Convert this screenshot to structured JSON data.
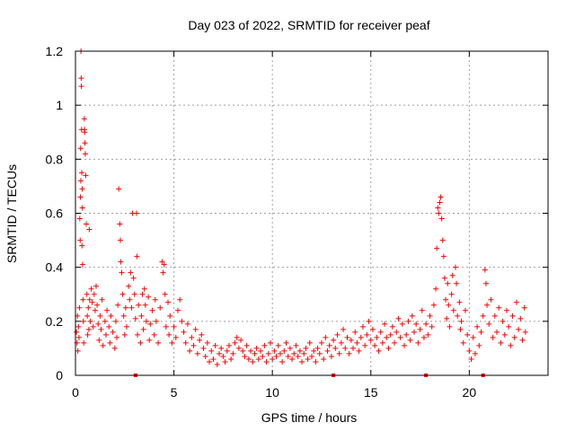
{
  "chart_data": {
    "type": "scatter",
    "title": "Day 023 of 2022, SRMTID for receiver peaf",
    "xlabel": "GPS time / hours",
    "ylabel": "SRMTID / TECUs",
    "xlim": [
      0,
      24
    ],
    "ylim": [
      0,
      1.2
    ],
    "x_ticks": [
      0,
      5,
      10,
      15,
      20
    ],
    "x_tick_labels": [
      "0",
      "5",
      "10",
      "15",
      "20"
    ],
    "y_ticks": [
      0,
      0.2,
      0.4,
      0.6,
      0.8,
      1.0,
      1.2
    ],
    "y_tick_labels": [
      "0",
      "0.2",
      "0.4",
      "0.6",
      "0.8",
      "1",
      "1.2"
    ],
    "grid": true,
    "marker": "plus",
    "color": "#ff0000",
    "series": [
      {
        "name": "SRMTID",
        "points": [
          [
            0.05,
            0.16
          ],
          [
            0.08,
            0.12
          ],
          [
            0.1,
            0.22
          ],
          [
            0.12,
            0.09
          ],
          [
            0.15,
            0.18
          ],
          [
            0.18,
            0.14
          ],
          [
            0.2,
            0.25
          ],
          [
            0.22,
            0.58
          ],
          [
            0.24,
            0.5
          ],
          [
            0.25,
            0.66
          ],
          [
            0.26,
            0.84
          ],
          [
            0.27,
            0.72
          ],
          [
            0.28,
            1.2
          ],
          [
            0.29,
            1.1
          ],
          [
            0.3,
            1.07
          ],
          [
            0.31,
            0.91
          ],
          [
            0.32,
            0.75
          ],
          [
            0.33,
            0.48
          ],
          [
            0.34,
            0.69
          ],
          [
            0.35,
            0.62
          ],
          [
            0.36,
            0.41
          ],
          [
            0.38,
            0.28
          ],
          [
            0.4,
            0.2
          ],
          [
            0.42,
            0.12
          ],
          [
            0.45,
            0.95
          ],
          [
            0.46,
            0.91
          ],
          [
            0.47,
            0.9
          ],
          [
            0.48,
            0.86
          ],
          [
            0.5,
            0.82
          ],
          [
            0.52,
            0.74
          ],
          [
            0.55,
            0.56
          ],
          [
            0.58,
            0.3
          ],
          [
            0.6,
            0.22
          ],
          [
            0.62,
            0.15
          ],
          [
            0.65,
            0.25
          ],
          [
            0.68,
            0.17
          ],
          [
            0.7,
            0.54
          ],
          [
            0.72,
            0.28
          ],
          [
            0.75,
            0.2
          ],
          [
            0.8,
            0.32
          ],
          [
            0.85,
            0.27
          ],
          [
            0.9,
            0.18
          ],
          [
            0.95,
            0.3
          ],
          [
            1.0,
            0.24
          ],
          [
            1.05,
            0.33
          ],
          [
            1.1,
            0.26
          ],
          [
            1.15,
            0.19
          ],
          [
            1.2,
            0.13
          ],
          [
            1.25,
            0.22
          ],
          [
            1.3,
            0.17
          ],
          [
            1.35,
            0.28
          ],
          [
            1.4,
            0.11
          ],
          [
            1.5,
            0.2
          ],
          [
            1.55,
            0.15
          ],
          [
            1.6,
            0.24
          ],
          [
            1.7,
            0.18
          ],
          [
            1.75,
            0.12
          ],
          [
            1.8,
            0.22
          ],
          [
            1.9,
            0.16
          ],
          [
            2.0,
            0.1
          ],
          [
            2.05,
            0.2
          ],
          [
            2.1,
            0.14
          ],
          [
            2.15,
            0.26
          ],
          [
            2.2,
            0.69
          ],
          [
            2.25,
            0.56
          ],
          [
            2.28,
            0.5
          ],
          [
            2.3,
            0.42
          ],
          [
            2.35,
            0.38
          ],
          [
            2.4,
            0.3
          ],
          [
            2.45,
            0.22
          ],
          [
            2.5,
            0.15
          ],
          [
            2.55,
            0.25
          ],
          [
            2.6,
            0.18
          ],
          [
            2.7,
            0.33
          ],
          [
            2.75,
            0.28
          ],
          [
            2.8,
            0.38
          ],
          [
            2.85,
            0.25
          ],
          [
            2.9,
            0.6
          ],
          [
            2.95,
            0.36
          ],
          [
            3.0,
            0.3
          ],
          [
            3.05,
            0.21
          ],
          [
            3.1,
            0.6
          ],
          [
            3.12,
            0.44
          ],
          [
            3.15,
            0.15
          ],
          [
            3.2,
            0.26
          ],
          [
            3.3,
            0.12
          ],
          [
            3.35,
            0.22
          ],
          [
            3.4,
            0.3
          ],
          [
            3.45,
            0.17
          ],
          [
            3.5,
            0.32
          ],
          [
            3.55,
            0.26
          ],
          [
            3.6,
            0.2
          ],
          [
            3.7,
            0.29
          ],
          [
            3.75,
            0.13
          ],
          [
            3.8,
            0.19
          ],
          [
            3.9,
            0.24
          ],
          [
            4.0,
            0.15
          ],
          [
            4.05,
            0.28
          ],
          [
            4.1,
            0.2
          ],
          [
            4.2,
            0.12
          ],
          [
            4.3,
            0.25
          ],
          [
            4.4,
            0.42
          ],
          [
            4.45,
            0.38
          ],
          [
            4.5,
            0.41
          ],
          [
            4.55,
            0.3
          ],
          [
            4.6,
            0.18
          ],
          [
            4.7,
            0.27
          ],
          [
            4.75,
            0.15
          ],
          [
            4.8,
            0.22
          ],
          [
            4.9,
            0.12
          ],
          [
            5.0,
            0.18
          ],
          [
            5.1,
            0.14
          ],
          [
            5.2,
            0.24
          ],
          [
            5.3,
            0.28
          ],
          [
            5.4,
            0.2
          ],
          [
            5.5,
            0.16
          ],
          [
            5.6,
            0.12
          ],
          [
            5.7,
            0.19
          ],
          [
            5.8,
            0.09
          ],
          [
            5.9,
            0.14
          ],
          [
            6.0,
            0.11
          ],
          [
            6.1,
            0.17
          ],
          [
            6.2,
            0.08
          ],
          [
            6.3,
            0.13
          ],
          [
            6.4,
            0.15
          ],
          [
            6.5,
            0.1
          ],
          [
            6.6,
            0.07
          ],
          [
            6.7,
            0.12
          ],
          [
            6.8,
            0.05
          ],
          [
            6.9,
            0.09
          ],
          [
            7.0,
            0.06
          ],
          [
            7.1,
            0.11
          ],
          [
            7.2,
            0.04
          ],
          [
            7.3,
            0.08
          ],
          [
            7.4,
            0.1
          ],
          [
            7.5,
            0.07
          ],
          [
            7.6,
            0.05
          ],
          [
            7.7,
            0.09
          ],
          [
            7.8,
            0.11
          ],
          [
            7.9,
            0.06
          ],
          [
            8.0,
            0.08
          ],
          [
            8.1,
            0.12
          ],
          [
            8.2,
            0.14
          ],
          [
            8.3,
            0.1
          ],
          [
            8.4,
            0.13
          ],
          [
            8.5,
            0.09
          ],
          [
            8.6,
            0.07
          ],
          [
            8.7,
            0.11
          ],
          [
            8.8,
            0.06
          ],
          [
            8.9,
            0.09
          ],
          [
            9.0,
            0.05
          ],
          [
            9.1,
            0.08
          ],
          [
            9.2,
            0.1
          ],
          [
            9.3,
            0.06
          ],
          [
            9.4,
            0.09
          ],
          [
            9.5,
            0.07
          ],
          [
            9.6,
            0.11
          ],
          [
            9.7,
            0.05
          ],
          [
            9.8,
            0.08
          ],
          [
            9.9,
            0.12
          ],
          [
            10.0,
            0.06
          ],
          [
            10.1,
            0.09
          ],
          [
            10.2,
            0.07
          ],
          [
            10.3,
            0.11
          ],
          [
            10.4,
            0.08
          ],
          [
            10.5,
            0.05
          ],
          [
            10.6,
            0.09
          ],
          [
            10.7,
            0.12
          ],
          [
            10.8,
            0.07
          ],
          [
            10.9,
            0.1
          ],
          [
            11.0,
            0.06
          ],
          [
            11.1,
            0.08
          ],
          [
            11.2,
            0.11
          ],
          [
            11.3,
            0.07
          ],
          [
            11.4,
            0.09
          ],
          [
            11.5,
            0.05
          ],
          [
            11.6,
            0.08
          ],
          [
            11.7,
            0.1
          ],
          [
            11.8,
            0.06
          ],
          [
            11.9,
            0.12
          ],
          [
            12.0,
            0.07
          ],
          [
            12.1,
            0.09
          ],
          [
            12.2,
            0.05
          ],
          [
            12.3,
            0.1
          ],
          [
            12.4,
            0.08
          ],
          [
            12.5,
            0.12
          ],
          [
            12.6,
            0.06
          ],
          [
            12.7,
            0.14
          ],
          [
            12.8,
            0.09
          ],
          [
            12.9,
            0.11
          ],
          [
            13.0,
            0.07
          ],
          [
            13.1,
            0.13
          ],
          [
            13.2,
            0.1
          ],
          [
            13.3,
            0.15
          ],
          [
            13.4,
            0.08
          ],
          [
            13.5,
            0.12
          ],
          [
            13.6,
            0.17
          ],
          [
            13.7,
            0.1
          ],
          [
            13.8,
            0.14
          ],
          [
            13.9,
            0.08
          ],
          [
            14.0,
            0.13
          ],
          [
            14.1,
            0.1
          ],
          [
            14.2,
            0.16
          ],
          [
            14.3,
            0.12
          ],
          [
            14.4,
            0.09
          ],
          [
            14.5,
            0.14
          ],
          [
            14.6,
            0.18
          ],
          [
            14.7,
            0.11
          ],
          [
            14.8,
            0.15
          ],
          [
            14.9,
            0.2
          ],
          [
            15.0,
            0.13
          ],
          [
            15.1,
            0.17
          ],
          [
            15.2,
            0.11
          ],
          [
            15.3,
            0.14
          ],
          [
            15.4,
            0.09
          ],
          [
            15.5,
            0.16
          ],
          [
            15.6,
            0.12
          ],
          [
            15.7,
            0.19
          ],
          [
            15.8,
            0.14
          ],
          [
            15.9,
            0.1
          ],
          [
            16.0,
            0.15
          ],
          [
            16.1,
            0.18
          ],
          [
            16.2,
            0.12
          ],
          [
            16.3,
            0.16
          ],
          [
            16.4,
            0.21
          ],
          [
            16.5,
            0.14
          ],
          [
            16.6,
            0.19
          ],
          [
            16.7,
            0.11
          ],
          [
            16.8,
            0.15
          ],
          [
            16.9,
            0.2
          ],
          [
            17.0,
            0.13
          ],
          [
            17.1,
            0.22
          ],
          [
            17.2,
            0.16
          ],
          [
            17.3,
            0.19
          ],
          [
            17.4,
            0.12
          ],
          [
            17.5,
            0.17
          ],
          [
            17.6,
            0.24
          ],
          [
            17.7,
            0.14
          ],
          [
            17.8,
            0.19
          ],
          [
            17.9,
            0.15
          ],
          [
            18.0,
            0.22
          ],
          [
            18.1,
            0.18
          ],
          [
            18.2,
            0.26
          ],
          [
            18.3,
            0.32
          ],
          [
            18.35,
            0.47
          ],
          [
            18.4,
            0.62
          ],
          [
            18.45,
            0.6
          ],
          [
            18.5,
            0.64
          ],
          [
            18.55,
            0.66
          ],
          [
            18.6,
            0.58
          ],
          [
            18.65,
            0.5
          ],
          [
            18.7,
            0.44
          ],
          [
            18.75,
            0.36
          ],
          [
            18.8,
            0.28
          ],
          [
            18.85,
            0.21
          ],
          [
            18.9,
            0.34
          ],
          [
            18.95,
            0.26
          ],
          [
            19.0,
            0.18
          ],
          [
            19.1,
            0.3
          ],
          [
            19.15,
            0.37
          ],
          [
            19.2,
            0.24
          ],
          [
            19.3,
            0.4
          ],
          [
            19.35,
            0.34
          ],
          [
            19.4,
            0.22
          ],
          [
            19.5,
            0.27
          ],
          [
            19.55,
            0.17
          ],
          [
            19.6,
            0.2
          ],
          [
            19.7,
            0.12
          ],
          [
            19.8,
            0.24
          ],
          [
            19.9,
            0.15
          ],
          [
            20.0,
            0.09
          ],
          [
            20.1,
            0.06
          ],
          [
            20.2,
            0.14
          ],
          [
            20.3,
            0.08
          ],
          [
            20.4,
            0.18
          ],
          [
            20.5,
            0.11
          ],
          [
            20.6,
            0.16
          ],
          [
            20.7,
            0.22
          ],
          [
            20.8,
            0.39
          ],
          [
            20.85,
            0.34
          ],
          [
            20.9,
            0.26
          ],
          [
            21.0,
            0.19
          ],
          [
            21.1,
            0.28
          ],
          [
            21.2,
            0.14
          ],
          [
            21.3,
            0.22
          ],
          [
            21.4,
            0.16
          ],
          [
            21.5,
            0.25
          ],
          [
            21.6,
            0.12
          ],
          [
            21.7,
            0.2
          ],
          [
            21.8,
            0.15
          ],
          [
            21.9,
            0.24
          ],
          [
            22.0,
            0.18
          ],
          [
            22.1,
            0.11
          ],
          [
            22.2,
            0.22
          ],
          [
            22.3,
            0.14
          ],
          [
            22.4,
            0.27
          ],
          [
            22.5,
            0.17
          ],
          [
            22.6,
            0.21
          ],
          [
            22.7,
            0.13
          ],
          [
            22.8,
            0.25
          ],
          [
            22.85,
            0.16
          ]
        ]
      }
    ],
    "edge_markers": [
      3.05,
      13.1,
      17.8,
      20.7
    ]
  }
}
